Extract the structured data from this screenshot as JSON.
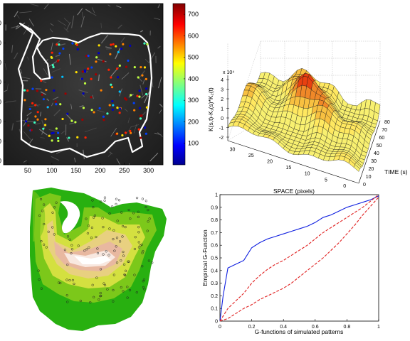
{
  "chart_data": [
    {
      "type": "scatter",
      "xticks": [
        "50",
        "100",
        "150",
        "200",
        "250",
        "300"
      ],
      "yticks": [
        "50",
        "100",
        "150",
        "200",
        "250",
        "300",
        "350",
        "400"
      ],
      "colorbar": {
        "ticks": [
          "700",
          "600",
          "500",
          "400",
          "300",
          "200",
          "100"
        ],
        "range": [
          0,
          750
        ]
      }
    },
    {
      "type": "surface",
      "zlabel": "K(s,t)-K₁(s)*K₂(t)",
      "zexp": "x 10⁴",
      "zticks": [
        "4",
        "3",
        "2",
        "1",
        "0",
        "-1",
        "-2"
      ],
      "xlabel": "SPACE (pixels)",
      "xticks": [
        "30",
        "25",
        "20",
        "15",
        "10",
        "5",
        "0"
      ],
      "ylabel": "TIME (s)",
      "yticks": [
        "0",
        "10",
        "20",
        "30",
        "40",
        "50",
        "60",
        "70",
        "80"
      ]
    },
    {
      "type": "heatmap",
      "colors": [
        "#28b010",
        "#7cc81a",
        "#d4e040",
        "#e8d080",
        "#e8b8a0",
        "#f8e8e0",
        "#ffffff"
      ]
    },
    {
      "type": "line",
      "xlabel": "G-functions of simulated patterns",
      "ylabel": "Empirical G-Function",
      "xlim": [
        0,
        1
      ],
      "ylim": [
        0,
        1
      ],
      "xticks": [
        "0",
        "0.2",
        "0.4",
        "0.6",
        "0.8",
        "1"
      ],
      "yticks": [
        "0",
        "0.1",
        "0.2",
        "0.3",
        "0.4",
        "0.5",
        "0.6",
        "0.7",
        "0.8",
        "0.9",
        "1"
      ],
      "series": [
        {
          "color": "#1020e0",
          "style": "solid",
          "x": [
            0,
            0.02,
            0.05,
            0.1,
            0.15,
            0.2,
            0.25,
            0.3,
            0.35,
            0.4,
            0.45,
            0.5,
            0.55,
            0.6,
            0.65,
            0.7,
            0.75,
            0.8,
            0.85,
            0.9,
            0.95,
            1.0
          ],
          "y": [
            0,
            0.2,
            0.42,
            0.45,
            0.48,
            0.58,
            0.62,
            0.65,
            0.67,
            0.69,
            0.71,
            0.73,
            0.75,
            0.78,
            0.82,
            0.84,
            0.87,
            0.9,
            0.92,
            0.94,
            0.96,
            0.99
          ]
        },
        {
          "color": "#e02020",
          "style": "dashed",
          "x": [
            0,
            0.05,
            0.1,
            0.15,
            0.2,
            0.25,
            0.3,
            0.35,
            0.4,
            0.45,
            0.5,
            0.55,
            0.6,
            0.65,
            0.7,
            0.75,
            0.8,
            0.85,
            0.9,
            0.95,
            1.0
          ],
          "y": [
            0,
            0.1,
            0.16,
            0.22,
            0.3,
            0.36,
            0.41,
            0.45,
            0.48,
            0.52,
            0.56,
            0.6,
            0.65,
            0.7,
            0.74,
            0.78,
            0.82,
            0.86,
            0.9,
            0.95,
            1.0
          ]
        },
        {
          "color": "#e02020",
          "style": "dashed",
          "x": [
            0,
            0.05,
            0.1,
            0.15,
            0.2,
            0.25,
            0.3,
            0.35,
            0.4,
            0.45,
            0.5,
            0.55,
            0.6,
            0.65,
            0.7,
            0.75,
            0.8,
            0.85,
            0.9,
            0.95,
            1.0
          ],
          "y": [
            0,
            0.02,
            0.06,
            0.1,
            0.13,
            0.17,
            0.2,
            0.23,
            0.26,
            0.3,
            0.35,
            0.4,
            0.45,
            0.5,
            0.56,
            0.62,
            0.69,
            0.76,
            0.84,
            0.91,
            0.98
          ]
        }
      ]
    }
  ]
}
